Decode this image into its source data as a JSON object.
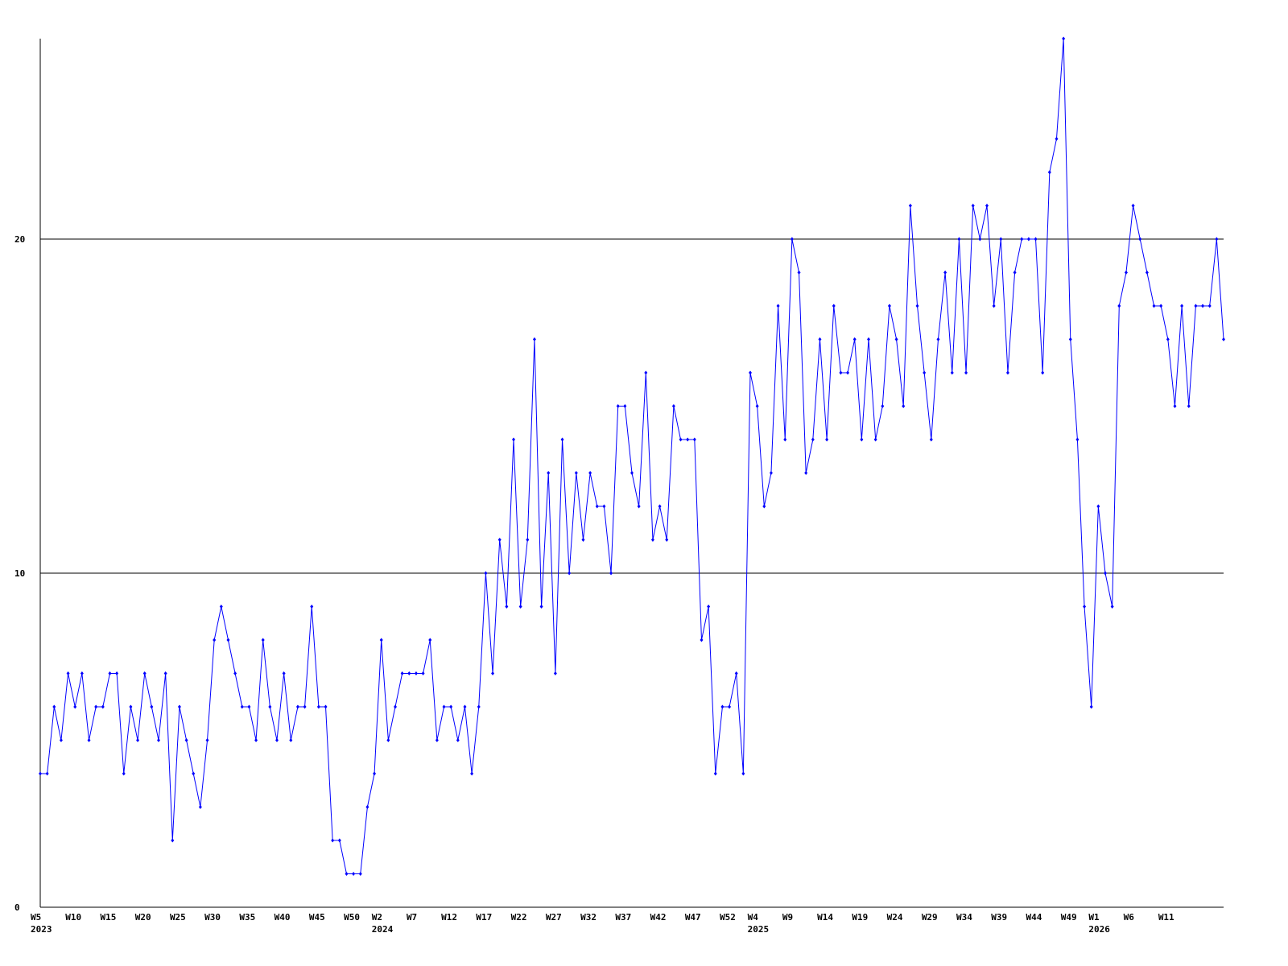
{
  "chart_data": {
    "type": "line",
    "color": "#0000ff",
    "grid": true,
    "ylim": [
      0,
      26
    ],
    "yticks": [
      0,
      10,
      20
    ],
    "categories": [
      "W5",
      null,
      null,
      null,
      null,
      "W10",
      null,
      null,
      null,
      null,
      "W15",
      null,
      null,
      null,
      null,
      "W20",
      null,
      null,
      null,
      null,
      "W25",
      null,
      null,
      null,
      null,
      "W30",
      null,
      null,
      null,
      null,
      "W35",
      null,
      null,
      null,
      null,
      "W40",
      null,
      null,
      null,
      null,
      "W45",
      null,
      null,
      null,
      null,
      "W50",
      null,
      null,
      null,
      "W2",
      null,
      null,
      null,
      null,
      "W7",
      null,
      null,
      null,
      null,
      "W12",
      null,
      null,
      null,
      null,
      "W17",
      null,
      null,
      null,
      null,
      "W22",
      null,
      null,
      null,
      null,
      "W27",
      null,
      null,
      null,
      null,
      "W32",
      null,
      null,
      null,
      null,
      "W37",
      null,
      null,
      null,
      null,
      "W42",
      null,
      null,
      null,
      null,
      "W47",
      null,
      null,
      null,
      null,
      "W52",
      null,
      null,
      null,
      "W4",
      null,
      null,
      null,
      null,
      "W9",
      null,
      null,
      null,
      null,
      "W14",
      null,
      null,
      null,
      null,
      "W19",
      null,
      null,
      null,
      null,
      "W24",
      null,
      null,
      null,
      null,
      "W29",
      null,
      null,
      null,
      null,
      "W34",
      null,
      null,
      null,
      null,
      "W39",
      null,
      null,
      null,
      null,
      "W44",
      null,
      null,
      null,
      null,
      "W49",
      null,
      null,
      null,
      "W1",
      null,
      null,
      null,
      null,
      "W6",
      null,
      null,
      null,
      null,
      "W11",
      null,
      null,
      null,
      null,
      null,
      null,
      null,
      null
    ],
    "category_years": [
      "2023",
      null,
      null,
      null,
      null,
      null,
      null,
      null,
      null,
      null,
      null,
      null,
      null,
      null,
      null,
      null,
      null,
      null,
      null,
      null,
      null,
      null,
      null,
      null,
      null,
      null,
      null,
      null,
      null,
      null,
      null,
      null,
      null,
      null,
      null,
      null,
      null,
      null,
      null,
      null,
      null,
      null,
      null,
      null,
      null,
      null,
      null,
      null,
      null,
      "2024",
      null,
      null,
      null,
      null,
      null,
      null,
      null,
      null,
      null,
      null,
      null,
      null,
      null,
      null,
      null,
      null,
      null,
      null,
      null,
      null,
      null,
      null,
      null,
      null,
      null,
      null,
      null,
      null,
      null,
      null,
      null,
      null,
      null,
      null,
      null,
      null,
      null,
      null,
      null,
      null,
      null,
      null,
      null,
      null,
      null,
      null,
      null,
      null,
      null,
      null,
      null,
      null,
      null,
      "2025",
      null,
      null,
      null,
      null,
      null,
      null,
      null,
      null,
      null,
      null,
      null,
      null,
      null,
      null,
      null,
      null,
      null,
      null,
      null,
      null,
      null,
      null,
      null,
      null,
      null,
      null,
      null,
      null,
      null,
      null,
      null,
      null,
      null,
      null,
      null,
      null,
      null,
      null,
      null,
      null,
      null,
      null,
      null,
      null,
      null,
      null,
      null,
      null,
      "2026",
      null,
      null,
      null,
      null,
      null,
      null,
      null,
      null,
      null,
      null,
      null,
      null,
      null,
      null,
      null,
      null,
      null,
      null
    ],
    "values": [
      4,
      4,
      6,
      5,
      7,
      6,
      7,
      5,
      6,
      6,
      7,
      7,
      4,
      6,
      5,
      7,
      6,
      5,
      7,
      2,
      6,
      5,
      4,
      3,
      5,
      8,
      9,
      8,
      7,
      6,
      6,
      5,
      8,
      6,
      5,
      7,
      5,
      6,
      6,
      9,
      6,
      6,
      2,
      2,
      1,
      1,
      1,
      3,
      4,
      8,
      5,
      6,
      7,
      7,
      7,
      7,
      8,
      5,
      6,
      6,
      5,
      6,
      4,
      6,
      10,
      7,
      11,
      9,
      14,
      9,
      11,
      17,
      9,
      13,
      7,
      14,
      10,
      13,
      11,
      13,
      12,
      12,
      10,
      15,
      15,
      13,
      12,
      16,
      11,
      12,
      11,
      15,
      14,
      14,
      14,
      8,
      9,
      4,
      6,
      6,
      7,
      4,
      16,
      15,
      12,
      13,
      18,
      14,
      20,
      19,
      13,
      14,
      17,
      14,
      18,
      16,
      16,
      17,
      14,
      17,
      14,
      15,
      18,
      17,
      15,
      21,
      18,
      16,
      14,
      17,
      19,
      16,
      20,
      16,
      21,
      20,
      21,
      18,
      20,
      16,
      19,
      20,
      20,
      20,
      16,
      22,
      23,
      26,
      17,
      14,
      9,
      6,
      12,
      10,
      9,
      18,
      19,
      21,
      20,
      19,
      18,
      18,
      17,
      15,
      18,
      15,
      18,
      18,
      18,
      20,
      17
    ]
  }
}
